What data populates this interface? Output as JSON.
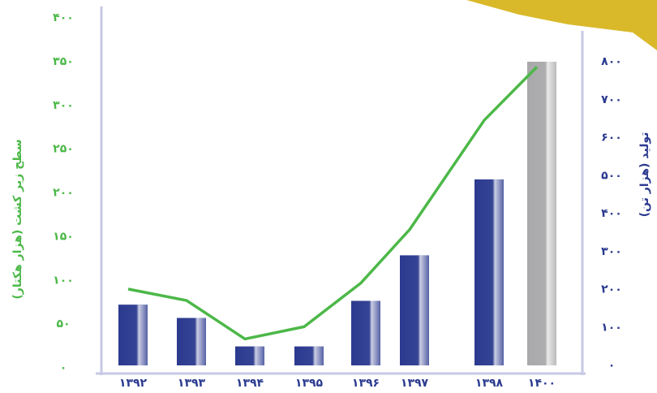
{
  "chart_data": {
    "type": "bar",
    "y_label": "سطح زیر کشت (هزار هکتار)",
    "y2_label": "تولید (هزار تن)",
    "categories": [
      "۱۳۹۲",
      "۱۳۹۳",
      "۱۳۹۴",
      "۱۳۹۵",
      "۱۳۹۶",
      "۱۳۹۷",
      "۱۳۹۸",
      "۱۴۰۰"
    ],
    "series": [
      {
        "type": "bar",
        "axis": "y2",
        "color": "#2b3a8f",
        "colors": [
          "#2b3a8f",
          "#2b3a8f",
          "#2b3a8f",
          "#2b3a8f",
          "#2b3a8f",
          "#2b3a8f",
          "#2b3a8f",
          "#a9a9ab"
        ],
        "values": [
          160,
          125,
          50,
          50,
          170,
          290,
          490,
          800
        ]
      },
      {
        "type": "line",
        "axis": "y",
        "color": "#4cb848",
        "values": [
          90,
          77,
          33,
          47,
          97,
          158,
          283,
          344
        ]
      }
    ],
    "ylim": [
      0,
      400
    ],
    "yticks": [
      {
        "value": 0,
        "label": "۰"
      },
      {
        "value": 50,
        "label": "۵۰"
      },
      {
        "value": 100,
        "label": "۱۰۰"
      },
      {
        "value": 150,
        "label": "۱۵۰"
      },
      {
        "value": 200,
        "label": "۲۰۰"
      },
      {
        "value": 250,
        "label": "۲۵۰"
      },
      {
        "value": 300,
        "label": "۳۰۰"
      },
      {
        "value": 350,
        "label": "۳۵۰"
      },
      {
        "value": 400,
        "label": "۴۰۰"
      }
    ],
    "y2lim": [
      0,
      800
    ],
    "y2ticks": [
      {
        "value": 0,
        "label": "۰"
      },
      {
        "value": 100,
        "label": "۱۰۰"
      },
      {
        "value": 200,
        "label": "۲۰۰"
      },
      {
        "value": 300,
        "label": "۳۰۰"
      },
      {
        "value": 400,
        "label": "۴۰۰"
      },
      {
        "value": 500,
        "label": "۵۰۰"
      },
      {
        "value": 600,
        "label": "۶۰۰"
      },
      {
        "value": 700,
        "label": "۷۰۰"
      },
      {
        "value": 800,
        "label": "۸۰۰"
      }
    ],
    "y_color": "#4cb848",
    "y2_color": "#2b3a8f"
  }
}
